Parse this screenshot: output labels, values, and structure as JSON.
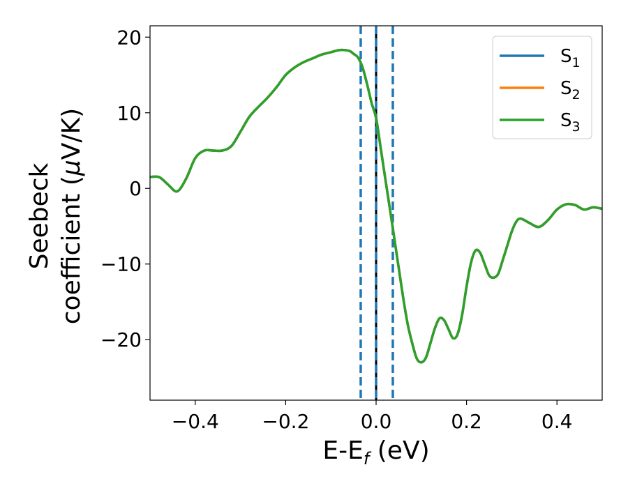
{
  "chart_data": {
    "type": "line",
    "xlabel": "E-E",
    "xlabel_sub": "f",
    "xlabel_unit": " (eV)",
    "ylabel_line1": "Seebeck",
    "ylabel_line2": "coefficient  (",
    "ylabel_mu": "μ",
    "ylabel_unit": "V/K)",
    "xlim": [
      -0.5,
      0.5
    ],
    "ylim": [
      -28,
      21.5
    ],
    "xticks": [
      -0.4,
      -0.2,
      0.0,
      0.2,
      0.4
    ],
    "xtick_labels": [
      "−0.4",
      "−0.2",
      "0.0",
      "0.2",
      "0.4"
    ],
    "yticks": [
      20,
      10,
      0,
      -10,
      -20
    ],
    "ytick_labels": [
      "20",
      "10",
      "0",
      "−10",
      "−20"
    ],
    "legend_position": "top-right",
    "vlines": [
      {
        "x": 0.0,
        "style": "solid",
        "color": "#000000"
      },
      {
        "x": -0.034,
        "style": "dashed",
        "color": "#1f77b4"
      },
      {
        "x": 0.0,
        "style": "dashed",
        "color": "#1f77b4"
      },
      {
        "x": 0.037,
        "style": "dashed",
        "color": "#1f77b4"
      }
    ],
    "series": [
      {
        "name": "S",
        "sub": "1",
        "color": "#1f77b4"
      },
      {
        "name": "S",
        "sub": "2",
        "color": "#ff7f0e"
      },
      {
        "name": "S",
        "sub": "3",
        "color": "#2ca02c"
      }
    ],
    "x": [
      -0.5,
      -0.48,
      -0.46,
      -0.44,
      -0.42,
      -0.4,
      -0.38,
      -0.36,
      -0.34,
      -0.32,
      -0.3,
      -0.28,
      -0.26,
      -0.24,
      -0.22,
      -0.2,
      -0.18,
      -0.16,
      -0.14,
      -0.12,
      -0.1,
      -0.08,
      -0.06,
      -0.05,
      -0.04,
      -0.03,
      -0.02,
      -0.01,
      0.0,
      0.01,
      0.02,
      0.03,
      0.04,
      0.05,
      0.06,
      0.07,
      0.08,
      0.09,
      0.1,
      0.11,
      0.12,
      0.13,
      0.14,
      0.15,
      0.16,
      0.17,
      0.18,
      0.19,
      0.2,
      0.21,
      0.22,
      0.23,
      0.24,
      0.25,
      0.26,
      0.27,
      0.28,
      0.29,
      0.3,
      0.31,
      0.32,
      0.34,
      0.36,
      0.38,
      0.4,
      0.42,
      0.44,
      0.46,
      0.48,
      0.5
    ],
    "y": [
      1.5,
      1.5,
      0.5,
      -0.4,
      1.3,
      4.0,
      5.0,
      5.0,
      5.0,
      5.6,
      7.5,
      9.5,
      10.8,
      12.0,
      13.4,
      15.0,
      16.0,
      16.7,
      17.2,
      17.7,
      18.0,
      18.3,
      18.2,
      17.8,
      17.3,
      16.0,
      13.8,
      11.3,
      9.3,
      5.4,
      1.4,
      -2.5,
      -6.5,
      -10.5,
      -14.5,
      -18.0,
      -20.5,
      -22.5,
      -23.0,
      -22.4,
      -20.5,
      -18.5,
      -17.2,
      -17.4,
      -18.6,
      -19.8,
      -19.3,
      -16.8,
      -13.0,
      -9.8,
      -8.2,
      -8.5,
      -10.0,
      -11.5,
      -11.8,
      -11.3,
      -9.5,
      -7.6,
      -5.7,
      -4.4,
      -4.0,
      -4.6,
      -5.1,
      -4.2,
      -2.8,
      -2.1,
      -2.2,
      -2.8,
      -2.5,
      -2.7
    ]
  }
}
